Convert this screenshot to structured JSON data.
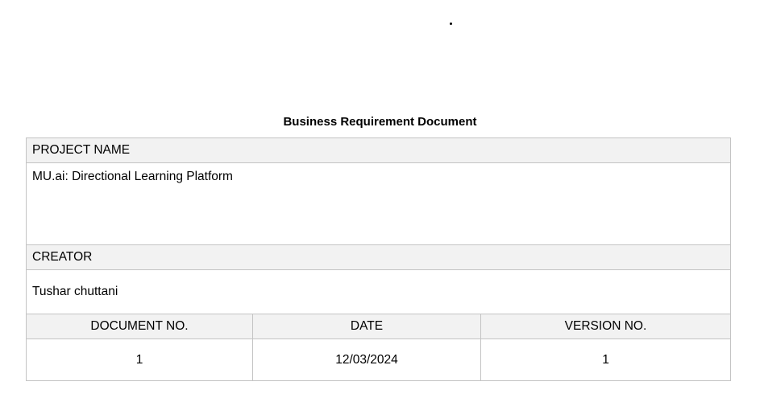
{
  "document": {
    "title": "Business Requirement Document",
    "project_name_label": "PROJECT NAME",
    "project_name": "MU.ai: Directional Learning Platform",
    "creator_label": "CREATOR",
    "creator": "Tushar chuttani",
    "columns": [
      "DOCUMENT NO.",
      "DATE",
      "VERSION NO."
    ],
    "values": [
      "1",
      "12/03/2024",
      "1"
    ]
  }
}
